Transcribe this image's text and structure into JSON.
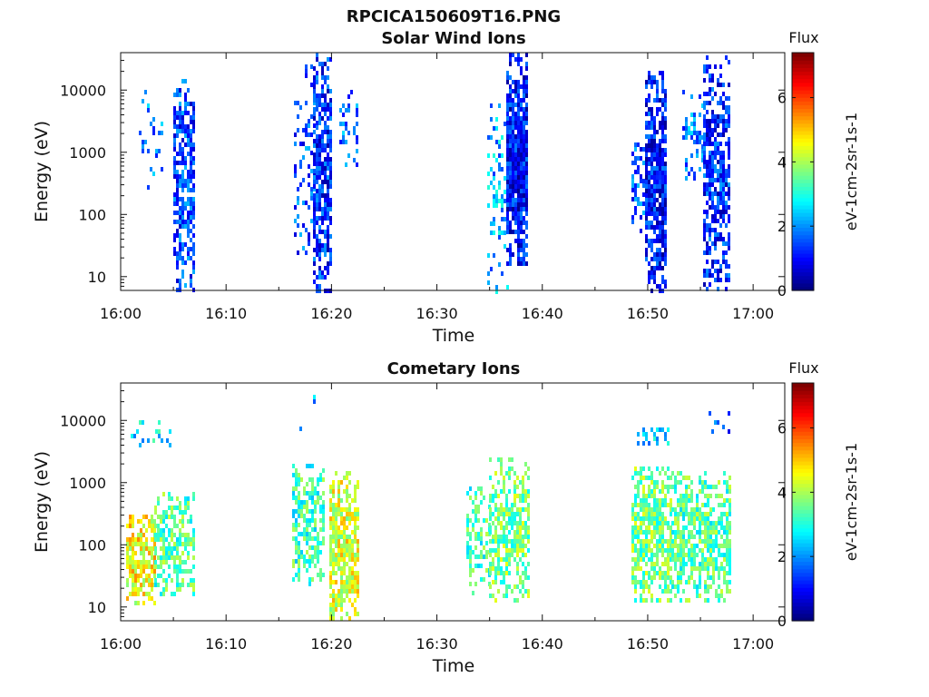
{
  "figure_title": "RPCICA150609T16.PNG",
  "colors": {
    "colormap": [
      "#00007f",
      "#0000ff",
      "#007fff",
      "#00ffff",
      "#7fff7f",
      "#ffff00",
      "#ff7f00",
      "#ff0000",
      "#7f0000"
    ]
  },
  "chart_data": [
    {
      "type": "heatmap",
      "title": "Solar Wind Ions",
      "xlabel": "Time",
      "ylabel": "Energy (eV)",
      "xticks": [
        "16:00",
        "16:10",
        "16:20",
        "16:30",
        "16:40",
        "16:50",
        "17:00"
      ],
      "xlim_minutes": [
        0,
        63
      ],
      "yscale": "log",
      "ylim": [
        6,
        40000
      ],
      "yticks": [
        {
          "value": 10,
          "label": "10"
        },
        {
          "value": 100,
          "label": "100"
        },
        {
          "value": 1000,
          "label": "1000"
        },
        {
          "value": 10000,
          "label": "10000"
        }
      ],
      "colorbar": {
        "title": "Flux",
        "label": "eV-1cm-2sr-1s-1",
        "range": [
          0,
          7.4
        ],
        "ticks": [
          "0",
          "2",
          "4",
          "6"
        ]
      },
      "bursts": [
        {
          "t0": 1.5,
          "t1": 3.8,
          "e_min": 250,
          "e_max": 10000,
          "flux": 1.8,
          "density": 0.12
        },
        {
          "t0": 5.0,
          "t1": 7.0,
          "e_min": 6,
          "e_max": 15000,
          "flux": 1.4,
          "density": 0.5
        },
        {
          "t0": 16.5,
          "t1": 18.3,
          "e_min": 25,
          "e_max": 30000,
          "flux": 1.5,
          "density": 0.2
        },
        {
          "t0": 18.3,
          "t1": 19.8,
          "e_min": 6,
          "e_max": 40000,
          "flux": 1.2,
          "density": 0.55
        },
        {
          "t0": 20.8,
          "t1": 22.5,
          "e_min": 600,
          "e_max": 10000,
          "flux": 1.7,
          "density": 0.2
        },
        {
          "t0": 34.8,
          "t1": 36.6,
          "e_min": 6,
          "e_max": 10000,
          "flux": 2.2,
          "density": 0.2
        },
        {
          "t0": 36.6,
          "t1": 38.6,
          "e_min": 15,
          "e_max": 40000,
          "flux": 1.0,
          "density": 0.7
        },
        {
          "t0": 48.5,
          "t1": 49.8,
          "e_min": 50,
          "e_max": 2000,
          "flux": 1.5,
          "density": 0.35
        },
        {
          "t0": 49.8,
          "t1": 51.8,
          "e_min": 6,
          "e_max": 20000,
          "flux": 1.0,
          "density": 0.65
        },
        {
          "t0": 53.3,
          "t1": 55.3,
          "e_min": 300,
          "e_max": 10000,
          "flux": 1.8,
          "density": 0.2
        },
        {
          "t0": 55.3,
          "t1": 57.8,
          "e_min": 6,
          "e_max": 35000,
          "flux": 1.2,
          "density": 0.5
        }
      ]
    },
    {
      "type": "heatmap",
      "title": "Cometary Ions",
      "xlabel": "Time",
      "ylabel": "Energy (eV)",
      "xticks": [
        "16:00",
        "16:10",
        "16:20",
        "16:30",
        "16:40",
        "16:50",
        "17:00"
      ],
      "xlim_minutes": [
        0,
        63
      ],
      "yscale": "log",
      "ylim": [
        6,
        40000
      ],
      "yticks": [
        {
          "value": 10,
          "label": "10"
        },
        {
          "value": 100,
          "label": "100"
        },
        {
          "value": 1000,
          "label": "1000"
        },
        {
          "value": 10000,
          "label": "10000"
        }
      ],
      "colorbar": {
        "title": "Flux",
        "label": "eV-1cm-2sr-1s-1",
        "range": [
          0,
          7.4
        ],
        "ticks": [
          "0",
          "2",
          "4",
          "6"
        ]
      },
      "bursts": [
        {
          "t0": 0.6,
          "t1": 3.2,
          "e_min": 12,
          "e_max": 300,
          "flux": 4.6,
          "density": 0.6
        },
        {
          "t0": 3.2,
          "t1": 7.0,
          "e_min": 15,
          "e_max": 700,
          "flux": 3.4,
          "density": 0.45
        },
        {
          "t0": 1.0,
          "t1": 4.8,
          "e_min": 4000,
          "e_max": 10000,
          "flux": 2.6,
          "density": 0.08
        },
        {
          "t0": 16.3,
          "t1": 19.3,
          "e_min": 25,
          "e_max": 2000,
          "flux": 3.2,
          "density": 0.45
        },
        {
          "t0": 19.8,
          "t1": 22.5,
          "e_min": 6,
          "e_max": 1500,
          "flux": 4.4,
          "density": 0.55
        },
        {
          "t0": 17.0,
          "t1": 19.0,
          "e_min": 5000,
          "e_max": 30000,
          "flux": 2.4,
          "density": 0.05
        },
        {
          "t0": 32.8,
          "t1": 35.0,
          "e_min": 15,
          "e_max": 1200,
          "flux": 3.3,
          "density": 0.35
        },
        {
          "t0": 35.0,
          "t1": 38.8,
          "e_min": 12,
          "e_max": 2500,
          "flux": 3.6,
          "density": 0.5
        },
        {
          "t0": 48.5,
          "t1": 52.3,
          "e_min": 12,
          "e_max": 1800,
          "flux": 3.6,
          "density": 0.55
        },
        {
          "t0": 52.3,
          "t1": 57.8,
          "e_min": 12,
          "e_max": 1500,
          "flux": 3.4,
          "density": 0.5
        },
        {
          "t0": 49.0,
          "t1": 52.0,
          "e_min": 4000,
          "e_max": 9000,
          "flux": 2.4,
          "density": 0.25
        },
        {
          "t0": 55.8,
          "t1": 57.6,
          "e_min": 7000,
          "e_max": 14000,
          "flux": 1.4,
          "density": 0.15
        }
      ]
    }
  ]
}
